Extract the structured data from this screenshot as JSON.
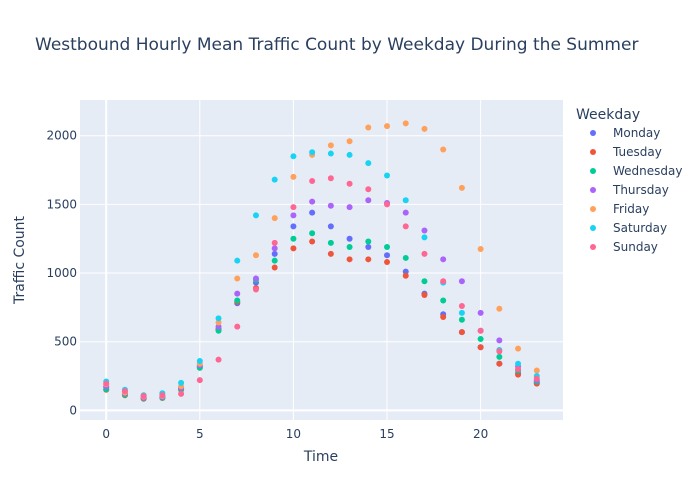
{
  "chart_data": {
    "type": "scatter",
    "title": "Westbound Hourly Mean Traffic Count by Weekday During the Summer",
    "xlabel": "Time",
    "ylabel": "Traffic Count",
    "xlim": [
      -1.4,
      24.4
    ],
    "ylim": [
      -70,
      2260
    ],
    "xticks": [
      0,
      5,
      10,
      15,
      20
    ],
    "yticks": [
      0,
      500,
      1000,
      1500,
      2000
    ],
    "grid": true,
    "legend_title": "Weekday",
    "legend_position": "right",
    "x": [
      0,
      1,
      2,
      3,
      4,
      5,
      6,
      7,
      8,
      9,
      10,
      11,
      12,
      13,
      14,
      15,
      16,
      17,
      18,
      19,
      20,
      21,
      22,
      23
    ],
    "series": [
      {
        "name": "Monday",
        "color": "#636efa",
        "values": [
          170,
          120,
          90,
          95,
          160,
          320,
          590,
          780,
          930,
          1140,
          1340,
          1440,
          1340,
          1250,
          1190,
          1130,
          1010,
          850,
          700,
          570,
          460,
          340,
          270,
          200
        ]
      },
      {
        "name": "Tuesday",
        "color": "#EF553B",
        "values": [
          150,
          110,
          85,
          90,
          150,
          310,
          590,
          790,
          890,
          1040,
          1180,
          1230,
          1140,
          1100,
          1100,
          1080,
          980,
          840,
          680,
          570,
          460,
          340,
          260,
          195
        ]
      },
      {
        "name": "Wednesday",
        "color": "#00cc96",
        "values": [
          155,
          115,
          88,
          92,
          155,
          310,
          580,
          800,
          950,
          1090,
          1250,
          1290,
          1220,
          1190,
          1230,
          1190,
          1110,
          940,
          800,
          660,
          520,
          390,
          290,
          210
        ]
      },
      {
        "name": "Thursday",
        "color": "#ab63fa",
        "values": [
          175,
          125,
          92,
          98,
          165,
          330,
          610,
          850,
          960,
          1180,
          1420,
          1520,
          1490,
          1480,
          1530,
          1510,
          1440,
          1310,
          1100,
          940,
          710,
          510,
          320,
          220
        ]
      },
      {
        "name": "Friday",
        "color": "#FFA15A",
        "values": [
          190,
          130,
          100,
          105,
          175,
          340,
          640,
          960,
          1130,
          1400,
          1700,
          1860,
          1930,
          1960,
          2060,
          2070,
          2090,
          2050,
          1900,
          1620,
          1175,
          740,
          450,
          290
        ]
      },
      {
        "name": "Saturday",
        "color": "#19d3f3",
        "values": [
          210,
          150,
          110,
          125,
          200,
          360,
          670,
          1090,
          1420,
          1680,
          1850,
          1880,
          1870,
          1860,
          1800,
          1710,
          1530,
          1260,
          930,
          710,
          580,
          440,
          340,
          250
        ]
      },
      {
        "name": "Sunday",
        "color": "#FF6692",
        "values": [
          195,
          140,
          105,
          110,
          120,
          220,
          370,
          610,
          880,
          1220,
          1480,
          1670,
          1690,
          1650,
          1610,
          1500,
          1340,
          1140,
          940,
          760,
          580,
          430,
          300,
          230
        ]
      }
    ]
  }
}
